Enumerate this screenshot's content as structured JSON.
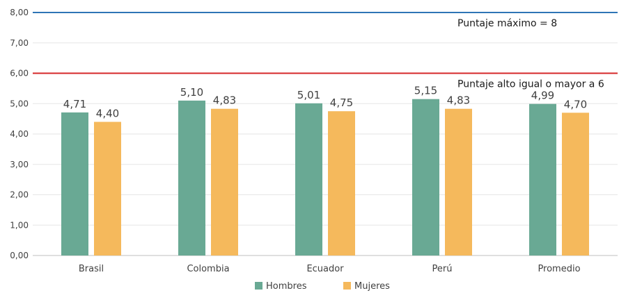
{
  "chart_data": {
    "type": "bar",
    "categories": [
      "Brasil",
      "Colombia",
      "Ecuador",
      "Perú",
      "Promedio"
    ],
    "series": [
      {
        "name": "Hombres",
        "color": "#69A994",
        "values": [
          4.71,
          5.1,
          5.01,
          5.15,
          4.99
        ],
        "labels": [
          "4,71",
          "5,10",
          "5,01",
          "5,15",
          "4,99"
        ]
      },
      {
        "name": "Mujeres",
        "color": "#F5B95C",
        "values": [
          4.4,
          4.83,
          4.75,
          4.83,
          4.7
        ],
        "labels": [
          "4,40",
          "4,83",
          "4,75",
          "4,83",
          "4,70"
        ]
      }
    ],
    "ylim": [
      0,
      8
    ],
    "yticks": [
      0,
      1,
      2,
      3,
      4,
      5,
      6,
      7,
      8
    ],
    "ytick_labels": [
      "0,00",
      "1,00",
      "2,00",
      "3,00",
      "4,00",
      "5,00",
      "6,00",
      "7,00",
      "8,00"
    ],
    "reference_lines": [
      {
        "value": 8,
        "color": "#2E75B6",
        "label": "Puntaje máximo = 8"
      },
      {
        "value": 6,
        "color": "#D62728",
        "label": "Puntaje alto igual o mayor a 6"
      }
    ],
    "grid": true,
    "legend_position": "bottom"
  }
}
